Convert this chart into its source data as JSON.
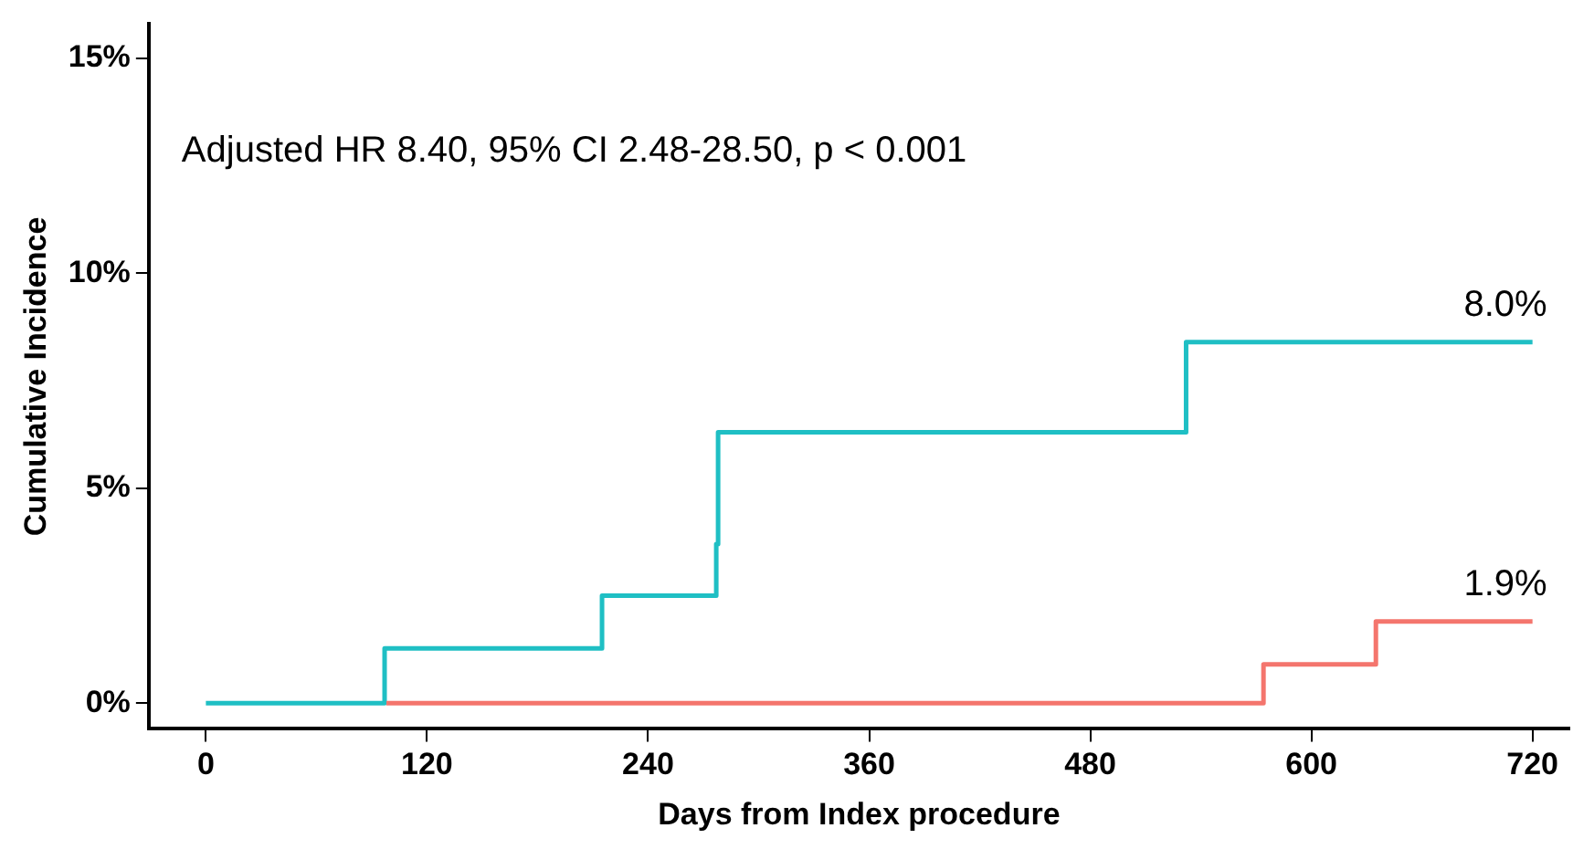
{
  "chart_data": {
    "type": "step",
    "xlabel": "Days from Index procedure",
    "ylabel": "Cumulative Incidence",
    "series": [
      {
        "color": "#f4756d",
        "x": [
          98,
          574,
          635,
          720
        ],
        "values": [
          0,
          0.9,
          1.9,
          1.9
        ]
      },
      {
        "color": "#1fbfc4",
        "x": [
          0,
          97,
          215,
          277,
          278,
          532,
          720
        ],
        "values": [
          0,
          1.27,
          2.5,
          3.7,
          6.3,
          8.4,
          8.4
        ]
      }
    ],
    "xlim": [
      -31,
      740
    ],
    "xticks": [
      0,
      120,
      240,
      360,
      480,
      600,
      720
    ],
    "ylim": [
      -0.6,
      15.8
    ],
    "yticks": [
      {
        "value": 0,
        "label": "0%"
      },
      {
        "value": 5,
        "label": "5%"
      },
      {
        "value": 10,
        "label": "10%"
      },
      {
        "value": 15,
        "label": "15%"
      }
    ],
    "annotations": [
      "Adjusted HR 8.40, 95% CI 2.48-28.50, p < 0.001",
      {
        "text": "8.0%",
        "x": 720,
        "y": 8.4
      },
      {
        "text": "1.9%",
        "x": 720,
        "y": 1.9
      }
    ],
    "grid": false,
    "legend": false,
    "marker": "none",
    "line_style": "solid"
  }
}
